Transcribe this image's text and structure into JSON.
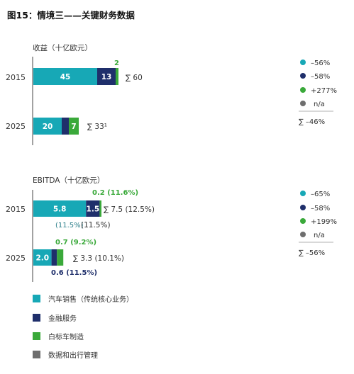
{
  "title": "图15：情境三——关键财务数据",
  "colors": {
    "teal": "#17a8b6",
    "navy": "#1f2f6b",
    "green": "#3aa93a",
    "gray": "#6e6e6e"
  },
  "chart_data": [
    {
      "type": "bar",
      "orientation": "horizontal",
      "stacked": true,
      "title": "收益（十亿欧元）",
      "categories": [
        "2015",
        "2025"
      ],
      "series": [
        {
          "name": "汽车销售（传统核心业务）",
          "values": [
            45,
            20
          ]
        },
        {
          "name": "金融服务",
          "values": [
            13,
            5
          ]
        },
        {
          "name": "白标车制造",
          "values": [
            2,
            7
          ]
        },
        {
          "name": "数据和出行管理",
          "values": [
            null,
            null
          ]
        }
      ],
      "segment_labels": [
        [
          "45",
          "13",
          "2"
        ],
        [
          "20",
          "5",
          "7"
        ]
      ],
      "totals": [
        "∑ 60",
        "∑ 33¹"
      ],
      "changes": [
        "–56%",
        "–58%",
        "+277%",
        "n/a"
      ],
      "total_change": "∑ –46%"
    },
    {
      "type": "bar",
      "orientation": "horizontal",
      "stacked": true,
      "title": "EBITDA（十亿欧元）",
      "categories": [
        "2015",
        "2025"
      ],
      "series": [
        {
          "name": "汽车销售（传统核心业务）",
          "values": [
            5.8,
            2.0
          ]
        },
        {
          "name": "金融服务",
          "values": [
            1.5,
            0.6
          ]
        },
        {
          "name": "白标车制造",
          "values": [
            0.2,
            0.7
          ]
        },
        {
          "name": "数据和出行管理",
          "values": [
            null,
            null
          ]
        }
      ],
      "segment_labels": [
        [
          "5.8",
          "1.5",
          "0.2 (11.6%)"
        ],
        [
          "2.0",
          "0.6 (11.5%)",
          "0.7 (9.2%)"
        ]
      ],
      "margin_notes": [
        "(11.5%)",
        "(11.5%)"
      ],
      "totals": [
        "∑ 7.5 (12.5%)",
        "∑ 3.3 (10.1%)"
      ],
      "changes": [
        "–65%",
        "–58%",
        "+199%",
        "n/a"
      ],
      "total_change": "∑ –56%"
    }
  ],
  "legend": [
    {
      "label": "汽车销售（传统核心业务）",
      "color": "#17a8b6"
    },
    {
      "label": "金融服务",
      "color": "#1f2f6b"
    },
    {
      "label": "白标车制造",
      "color": "#3aa93a"
    },
    {
      "label": "数据和出行管理",
      "color": "#6e6e6e"
    }
  ]
}
